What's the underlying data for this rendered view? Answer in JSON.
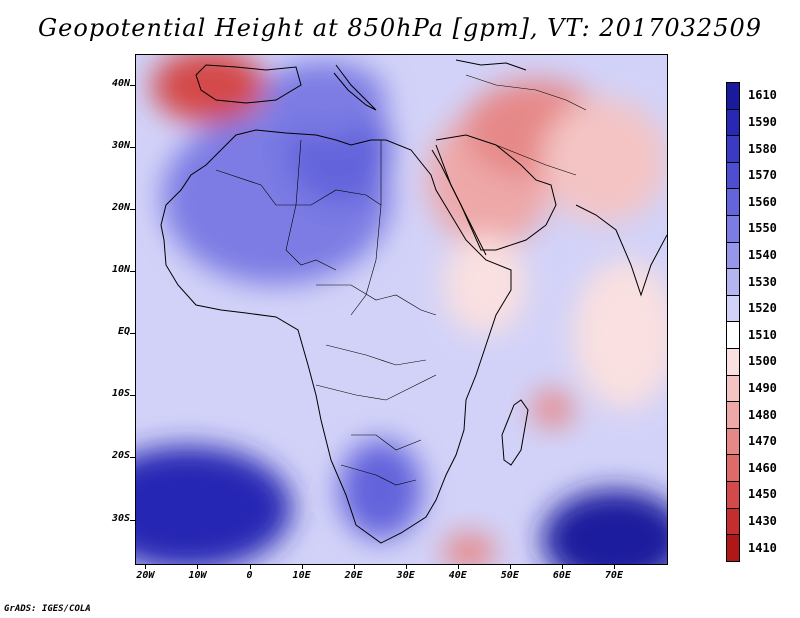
{
  "title": "Geopotential Height at 850hPa [gpm], VT: 2017032509",
  "credit": "GrADS: IGES/COLA",
  "map": {
    "lon_range": [
      -22,
      80
    ],
    "lat_range": [
      -37,
      45
    ],
    "lat_labels": [
      {
        "lat": 40,
        "label": "40N"
      },
      {
        "lat": 30,
        "label": "30N"
      },
      {
        "lat": 20,
        "label": "20N"
      },
      {
        "lat": 10,
        "label": "10N"
      },
      {
        "lat": 0,
        "label": "EQ"
      },
      {
        "lat": -10,
        "label": "10S"
      },
      {
        "lat": -20,
        "label": "20S"
      },
      {
        "lat": -30,
        "label": "30S"
      }
    ],
    "lon_labels": [
      {
        "lon": -20,
        "label": "20W"
      },
      {
        "lon": -10,
        "label": "10W"
      },
      {
        "lon": 0,
        "label": "0"
      },
      {
        "lon": 10,
        "label": "10E"
      },
      {
        "lon": 20,
        "label": "20E"
      },
      {
        "lon": 30,
        "label": "30E"
      },
      {
        "lon": 40,
        "label": "40E"
      },
      {
        "lon": 50,
        "label": "50E"
      },
      {
        "lon": 60,
        "label": "60E"
      },
      {
        "lon": 70,
        "label": "70E"
      }
    ],
    "background_value": 1520,
    "field_blobs": [
      {
        "name": "south-atlantic-high",
        "lon": -12,
        "lat": -28,
        "rx": 20,
        "ry": 10,
        "value": 1590
      },
      {
        "name": "south-indian-high",
        "lon": 70,
        "lat": -33,
        "rx": 14,
        "ry": 8,
        "value": 1600
      },
      {
        "name": "sahara-high",
        "lon": 5,
        "lat": 22,
        "rx": 22,
        "ry": 14,
        "value": 1550
      },
      {
        "name": "libya-high",
        "lon": 17,
        "lat": 30,
        "rx": 10,
        "ry": 9,
        "value": 1560
      },
      {
        "name": "mediterranean-high",
        "lon": 14,
        "lat": 38,
        "rx": 12,
        "ry": 6,
        "value": 1550
      },
      {
        "name": "south-africa-high",
        "lon": 25,
        "lat": -25,
        "rx": 8,
        "ry": 8,
        "value": 1560
      },
      {
        "name": "iberia-low",
        "lon": -8,
        "lat": 40,
        "rx": 11,
        "ry": 6,
        "value": 1450
      },
      {
        "name": "arabia-low",
        "lon": 46,
        "lat": 25,
        "rx": 12,
        "ry": 11,
        "value": 1480
      },
      {
        "name": "iran-low",
        "lon": 55,
        "lat": 33,
        "rx": 14,
        "ry": 8,
        "value": 1470
      },
      {
        "name": "india-west",
        "lon": 68,
        "lat": 28,
        "rx": 12,
        "ry": 10,
        "value": 1490
      },
      {
        "name": "madagascar-low",
        "lon": 58,
        "lat": -12,
        "rx": 4,
        "ry": 3,
        "value": 1470
      },
      {
        "name": "mozambique-low",
        "lon": 42,
        "lat": -35,
        "rx": 5,
        "ry": 3,
        "value": 1470
      },
      {
        "name": "east-africa-band",
        "lon": 45,
        "lat": 8,
        "rx": 8,
        "ry": 8,
        "value": 1500
      },
      {
        "name": "indian-ocean-band",
        "lon": 72,
        "lat": 0,
        "rx": 10,
        "ry": 12,
        "value": 1500
      }
    ]
  },
  "colorbar": {
    "levels": [
      "1610",
      "1590",
      "1580",
      "1570",
      "1560",
      "1550",
      "1540",
      "1530",
      "1520",
      "1510",
      "1500",
      "1490",
      "1480",
      "1470",
      "1460",
      "1450",
      "1430",
      "1410"
    ],
    "colors": [
      "#1a1a9e",
      "#2828b4",
      "#3a3ac4",
      "#4e4ed2",
      "#6464dc",
      "#7c7ce4",
      "#9696ea",
      "#b4b4f0",
      "#d2d2f8",
      "#ffffff",
      "#fae0e0",
      "#f4c4c4",
      "#eea8a8",
      "#e68888",
      "#de6a6a",
      "#d44a4a",
      "#c42e2e",
      "#b01818"
    ]
  }
}
